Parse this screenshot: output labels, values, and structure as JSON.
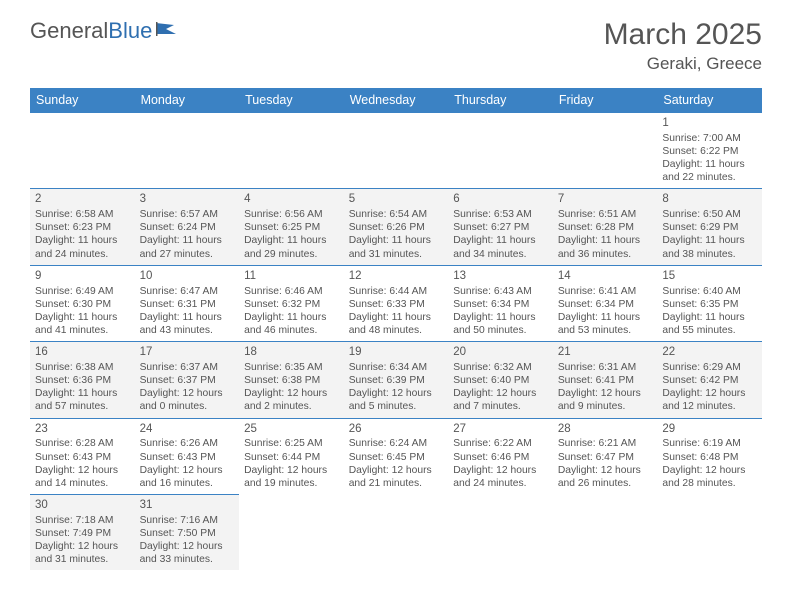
{
  "logo": {
    "textA": "General",
    "textB": "Blue"
  },
  "header": {
    "title": "March 2025",
    "location": "Geraki, Greece"
  },
  "colors": {
    "header_bg": "#3b82c4",
    "header_text": "#ffffff",
    "border": "#3b82c4",
    "shade_bg": "#f3f3f3",
    "text": "#555555",
    "logo_blue": "#2f6fb0"
  },
  "weekdays": [
    "Sunday",
    "Monday",
    "Tuesday",
    "Wednesday",
    "Thursday",
    "Friday",
    "Saturday"
  ],
  "weeks": [
    [
      null,
      null,
      null,
      null,
      null,
      null,
      {
        "n": "1",
        "sr": "Sunrise: 7:00 AM",
        "ss": "Sunset: 6:22 PM",
        "d1": "Daylight: 11 hours",
        "d2": "and 22 minutes."
      }
    ],
    [
      {
        "n": "2",
        "sr": "Sunrise: 6:58 AM",
        "ss": "Sunset: 6:23 PM",
        "d1": "Daylight: 11 hours",
        "d2": "and 24 minutes."
      },
      {
        "n": "3",
        "sr": "Sunrise: 6:57 AM",
        "ss": "Sunset: 6:24 PM",
        "d1": "Daylight: 11 hours",
        "d2": "and 27 minutes."
      },
      {
        "n": "4",
        "sr": "Sunrise: 6:56 AM",
        "ss": "Sunset: 6:25 PM",
        "d1": "Daylight: 11 hours",
        "d2": "and 29 minutes."
      },
      {
        "n": "5",
        "sr": "Sunrise: 6:54 AM",
        "ss": "Sunset: 6:26 PM",
        "d1": "Daylight: 11 hours",
        "d2": "and 31 minutes."
      },
      {
        "n": "6",
        "sr": "Sunrise: 6:53 AM",
        "ss": "Sunset: 6:27 PM",
        "d1": "Daylight: 11 hours",
        "d2": "and 34 minutes."
      },
      {
        "n": "7",
        "sr": "Sunrise: 6:51 AM",
        "ss": "Sunset: 6:28 PM",
        "d1": "Daylight: 11 hours",
        "d2": "and 36 minutes."
      },
      {
        "n": "8",
        "sr": "Sunrise: 6:50 AM",
        "ss": "Sunset: 6:29 PM",
        "d1": "Daylight: 11 hours",
        "d2": "and 38 minutes."
      }
    ],
    [
      {
        "n": "9",
        "sr": "Sunrise: 6:49 AM",
        "ss": "Sunset: 6:30 PM",
        "d1": "Daylight: 11 hours",
        "d2": "and 41 minutes."
      },
      {
        "n": "10",
        "sr": "Sunrise: 6:47 AM",
        "ss": "Sunset: 6:31 PM",
        "d1": "Daylight: 11 hours",
        "d2": "and 43 minutes."
      },
      {
        "n": "11",
        "sr": "Sunrise: 6:46 AM",
        "ss": "Sunset: 6:32 PM",
        "d1": "Daylight: 11 hours",
        "d2": "and 46 minutes."
      },
      {
        "n": "12",
        "sr": "Sunrise: 6:44 AM",
        "ss": "Sunset: 6:33 PM",
        "d1": "Daylight: 11 hours",
        "d2": "and 48 minutes."
      },
      {
        "n": "13",
        "sr": "Sunrise: 6:43 AM",
        "ss": "Sunset: 6:34 PM",
        "d1": "Daylight: 11 hours",
        "d2": "and 50 minutes."
      },
      {
        "n": "14",
        "sr": "Sunrise: 6:41 AM",
        "ss": "Sunset: 6:34 PM",
        "d1": "Daylight: 11 hours",
        "d2": "and 53 minutes."
      },
      {
        "n": "15",
        "sr": "Sunrise: 6:40 AM",
        "ss": "Sunset: 6:35 PM",
        "d1": "Daylight: 11 hours",
        "d2": "and 55 minutes."
      }
    ],
    [
      {
        "n": "16",
        "sr": "Sunrise: 6:38 AM",
        "ss": "Sunset: 6:36 PM",
        "d1": "Daylight: 11 hours",
        "d2": "and 57 minutes."
      },
      {
        "n": "17",
        "sr": "Sunrise: 6:37 AM",
        "ss": "Sunset: 6:37 PM",
        "d1": "Daylight: 12 hours",
        "d2": "and 0 minutes."
      },
      {
        "n": "18",
        "sr": "Sunrise: 6:35 AM",
        "ss": "Sunset: 6:38 PM",
        "d1": "Daylight: 12 hours",
        "d2": "and 2 minutes."
      },
      {
        "n": "19",
        "sr": "Sunrise: 6:34 AM",
        "ss": "Sunset: 6:39 PM",
        "d1": "Daylight: 12 hours",
        "d2": "and 5 minutes."
      },
      {
        "n": "20",
        "sr": "Sunrise: 6:32 AM",
        "ss": "Sunset: 6:40 PM",
        "d1": "Daylight: 12 hours",
        "d2": "and 7 minutes."
      },
      {
        "n": "21",
        "sr": "Sunrise: 6:31 AM",
        "ss": "Sunset: 6:41 PM",
        "d1": "Daylight: 12 hours",
        "d2": "and 9 minutes."
      },
      {
        "n": "22",
        "sr": "Sunrise: 6:29 AM",
        "ss": "Sunset: 6:42 PM",
        "d1": "Daylight: 12 hours",
        "d2": "and 12 minutes."
      }
    ],
    [
      {
        "n": "23",
        "sr": "Sunrise: 6:28 AM",
        "ss": "Sunset: 6:43 PM",
        "d1": "Daylight: 12 hours",
        "d2": "and 14 minutes."
      },
      {
        "n": "24",
        "sr": "Sunrise: 6:26 AM",
        "ss": "Sunset: 6:43 PM",
        "d1": "Daylight: 12 hours",
        "d2": "and 16 minutes."
      },
      {
        "n": "25",
        "sr": "Sunrise: 6:25 AM",
        "ss": "Sunset: 6:44 PM",
        "d1": "Daylight: 12 hours",
        "d2": "and 19 minutes."
      },
      {
        "n": "26",
        "sr": "Sunrise: 6:24 AM",
        "ss": "Sunset: 6:45 PM",
        "d1": "Daylight: 12 hours",
        "d2": "and 21 minutes."
      },
      {
        "n": "27",
        "sr": "Sunrise: 6:22 AM",
        "ss": "Sunset: 6:46 PM",
        "d1": "Daylight: 12 hours",
        "d2": "and 24 minutes."
      },
      {
        "n": "28",
        "sr": "Sunrise: 6:21 AM",
        "ss": "Sunset: 6:47 PM",
        "d1": "Daylight: 12 hours",
        "d2": "and 26 minutes."
      },
      {
        "n": "29",
        "sr": "Sunrise: 6:19 AM",
        "ss": "Sunset: 6:48 PM",
        "d1": "Daylight: 12 hours",
        "d2": "and 28 minutes."
      }
    ],
    [
      {
        "n": "30",
        "sr": "Sunrise: 7:18 AM",
        "ss": "Sunset: 7:49 PM",
        "d1": "Daylight: 12 hours",
        "d2": "and 31 minutes."
      },
      {
        "n": "31",
        "sr": "Sunrise: 7:16 AM",
        "ss": "Sunset: 7:50 PM",
        "d1": "Daylight: 12 hours",
        "d2": "and 33 minutes."
      },
      null,
      null,
      null,
      null,
      null
    ]
  ]
}
